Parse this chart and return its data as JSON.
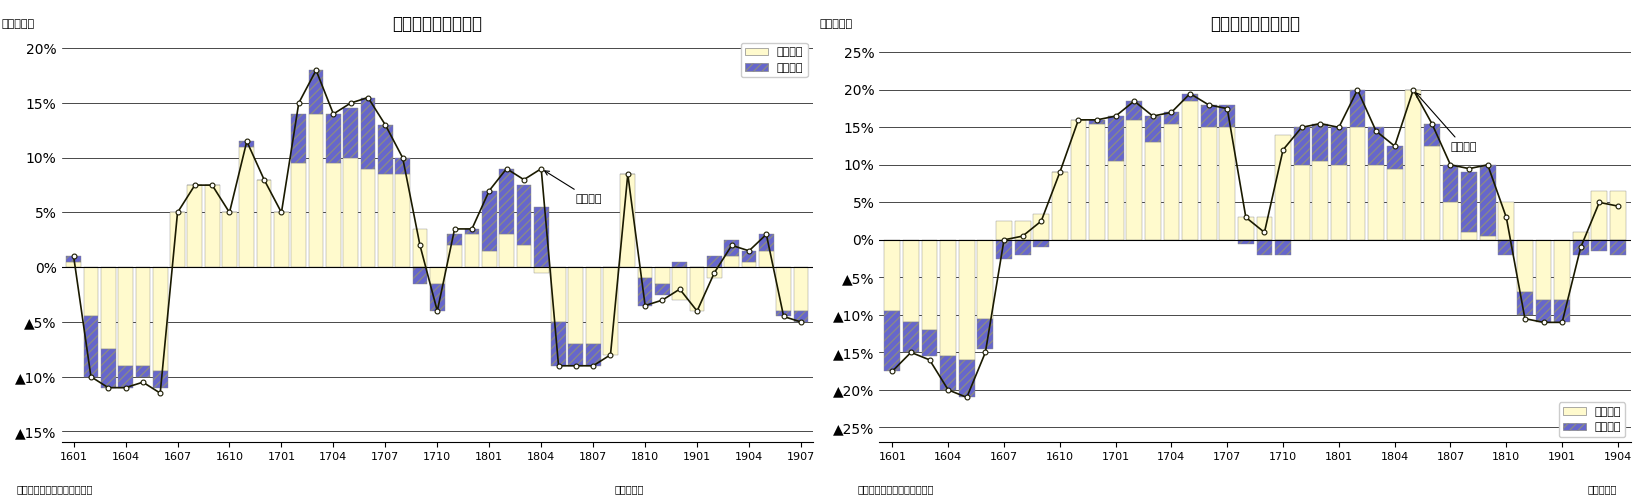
{
  "export_title": "輸出金額の要因分解",
  "import_title": "輸入金額の要因分解",
  "ylabel_label": "（前年比）",
  "xlabel_label": "（年・月）",
  "source_label": "（資料）財務省「貿易統計」",
  "legend_quantity": "数量要因",
  "legend_price": "価格要因",
  "export_line_label": "輸出金額",
  "import_line_label": "輸入金額",
  "x_tick_labels": [
    "1601",
    "1604",
    "1607",
    "1610",
    "1701",
    "1704",
    "1707",
    "1710",
    "1801",
    "1804",
    "1807",
    "1810",
    "1901",
    "1904",
    "1907"
  ],
  "export_quantity": [
    0.5,
    -4.5,
    -7.5,
    -9.0,
    -9.0,
    -9.5,
    5.0,
    7.5,
    7.5,
    5.0,
    11.0,
    8.0,
    5.0,
    9.5,
    14.0,
    9.5,
    10.0,
    9.0,
    8.5,
    8.5,
    3.5,
    -1.5,
    2.0,
    3.0,
    1.5,
    3.0,
    2.0,
    -0.5,
    -5.0,
    -7.0,
    -7.0,
    -8.0,
    8.5,
    -1.0,
    -1.5,
    -3.0,
    -4.0,
    -1.0,
    1.0,
    0.5,
    1.5,
    -4.0,
    -4.0
  ],
  "export_price": [
    0.5,
    -5.5,
    -3.5,
    -2.0,
    -1.0,
    -1.5,
    0.0,
    0.0,
    0.0,
    0.0,
    0.5,
    0.0,
    0.0,
    4.5,
    4.0,
    4.5,
    4.5,
    6.5,
    4.5,
    1.5,
    -1.5,
    -2.5,
    1.0,
    0.5,
    5.5,
    6.0,
    5.5,
    5.5,
    -4.0,
    -2.0,
    -2.0,
    0.0,
    0.0,
    -2.5,
    -1.0,
    0.5,
    0.0,
    1.0,
    1.5,
    1.0,
    1.5,
    -0.5,
    -1.0
  ],
  "export_line": [
    1.0,
    -10.0,
    -11.0,
    -11.0,
    -10.5,
    -11.5,
    5.0,
    7.5,
    7.5,
    5.0,
    11.5,
    8.0,
    5.0,
    15.0,
    18.0,
    14.0,
    15.0,
    15.5,
    13.0,
    10.0,
    2.0,
    -4.0,
    3.5,
    3.5,
    7.0,
    9.0,
    8.0,
    9.0,
    -9.0,
    -9.0,
    -9.0,
    -8.0,
    8.5,
    -3.5,
    -3.0,
    -2.0,
    -4.0,
    -0.5,
    2.0,
    1.5,
    3.0,
    -4.5,
    -5.0
  ],
  "import_quantity": [
    -9.5,
    -11.0,
    -12.0,
    -15.5,
    -16.0,
    -10.5,
    2.5,
    2.5,
    3.5,
    9.0,
    16.0,
    15.5,
    10.5,
    16.0,
    13.0,
    15.5,
    18.5,
    15.0,
    15.0,
    3.0,
    3.0,
    14.0,
    10.0,
    10.5,
    10.0,
    15.0,
    10.0,
    9.5,
    20.0,
    12.5,
    5.0,
    1.0,
    0.5,
    5.0,
    -7.0,
    -8.0,
    -8.0,
    1.0,
    6.5,
    6.5
  ],
  "import_price": [
    -8.0,
    -4.0,
    -3.5,
    -4.5,
    -5.0,
    -4.0,
    -2.5,
    -2.0,
    -1.0,
    0.0,
    0.0,
    0.5,
    6.0,
    2.5,
    3.5,
    1.5,
    1.0,
    3.0,
    3.0,
    -0.5,
    -2.0,
    -2.0,
    5.0,
    5.0,
    5.0,
    5.0,
    5.0,
    3.0,
    0.0,
    3.0,
    5.0,
    8.0,
    9.5,
    -2.0,
    -3.0,
    -3.0,
    -3.0,
    -2.0,
    -1.5,
    -2.0
  ],
  "import_line": [
    -17.5,
    -15.0,
    -16.0,
    -20.0,
    -21.0,
    -15.0,
    0.0,
    0.5,
    2.5,
    9.0,
    16.0,
    16.0,
    16.5,
    18.5,
    16.5,
    17.0,
    19.5,
    18.0,
    17.5,
    3.0,
    1.0,
    12.0,
    15.0,
    15.5,
    15.0,
    20.0,
    14.5,
    12.5,
    20.0,
    15.5,
    10.0,
    9.5,
    10.0,
    3.0,
    -10.5,
    -11.0,
    -11.0,
    -1.0,
    5.0,
    4.5
  ],
  "export_ylim": [
    -16,
    21
  ],
  "export_yticks": [
    -15,
    -10,
    -5,
    0,
    5,
    10,
    15,
    20
  ],
  "import_ylim": [
    -27,
    27
  ],
  "import_yticks": [
    -25,
    -20,
    -15,
    -10,
    -5,
    0,
    5,
    10,
    15,
    20,
    25
  ],
  "bar_color_quantity": "#FFFACD",
  "bar_color_price": "#6666CC",
  "line_color": "#1a1a00",
  "background_color": "#ffffff",
  "chart_bg": "#ffffff"
}
